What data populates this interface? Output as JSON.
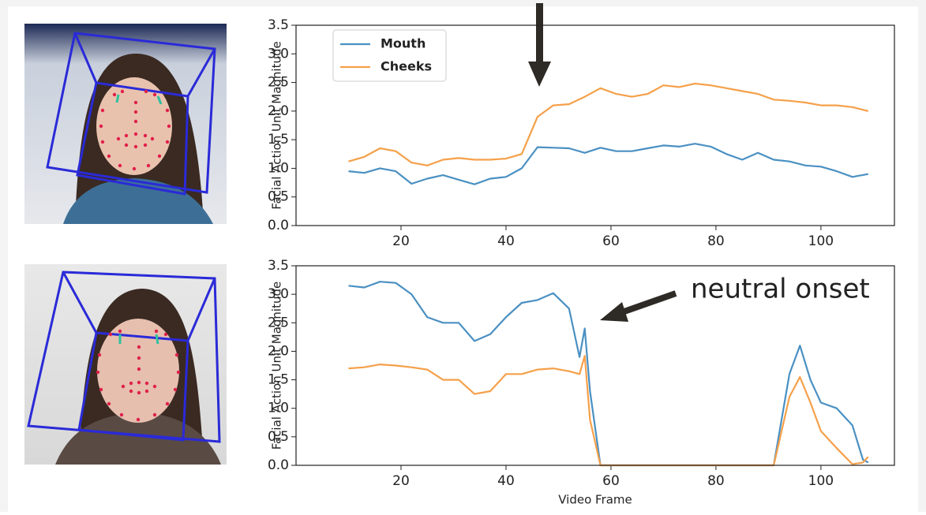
{
  "chart_data": [
    {
      "type": "line",
      "ylabel": "Facial Action Unit Magnitude",
      "legend": "upper left",
      "x": [
        10,
        13,
        16,
        19,
        22,
        25,
        28,
        31,
        34,
        37,
        40,
        43,
        46,
        49,
        52,
        55,
        58,
        61,
        64,
        67,
        70,
        73,
        76,
        79,
        82,
        85,
        88,
        91,
        94,
        97,
        100,
        103,
        106,
        109
      ],
      "series": [
        {
          "name": "Mouth",
          "color": "#4a90c2",
          "values": [
            0.95,
            0.92,
            1.0,
            0.95,
            0.73,
            0.82,
            0.88,
            0.8,
            0.72,
            0.82,
            0.85,
            1.0,
            1.37,
            1.36,
            1.35,
            1.27,
            1.36,
            1.3,
            1.3,
            1.35,
            1.4,
            1.38,
            1.43,
            1.38,
            1.25,
            1.15,
            1.27,
            1.15,
            1.12,
            1.05,
            1.03,
            0.95,
            0.85,
            0.9
          ]
        },
        {
          "name": "Cheeks",
          "color": "#f5a04a",
          "values": [
            1.12,
            1.2,
            1.35,
            1.3,
            1.1,
            1.05,
            1.15,
            1.18,
            1.15,
            1.15,
            1.17,
            1.25,
            1.9,
            2.1,
            2.12,
            2.25,
            2.4,
            2.3,
            2.25,
            2.3,
            2.45,
            2.42,
            2.48,
            2.45,
            2.4,
            2.35,
            2.3,
            2.2,
            2.18,
            2.15,
            2.1,
            2.1,
            2.07,
            2.0
          ]
        }
      ],
      "xlim": [
        0,
        114
      ],
      "xticks": [
        20,
        40,
        60,
        80,
        100
      ],
      "ylim": [
        0,
        3.5
      ],
      "yticks": [
        {
          "value": 0,
          "label": "0.0"
        },
        {
          "value": 0.5,
          "label": "0.5"
        },
        {
          "value": 1,
          "label": "1.0"
        },
        {
          "value": 1.5,
          "label": "1.5"
        },
        {
          "value": 2,
          "label": "2.0"
        },
        {
          "value": 2.5,
          "label": "2.5"
        },
        {
          "value": 3,
          "label": "3.0"
        },
        {
          "value": 3.5,
          "label": "3.5"
        }
      ]
    },
    {
      "type": "line",
      "ylabel": "Facial Action Unit Magnitude",
      "xlabel": "Video Frame",
      "annotation": "neutral onset",
      "x": [
        10,
        13,
        16,
        19,
        22,
        25,
        28,
        31,
        34,
        37,
        40,
        43,
        46,
        49,
        52,
        54,
        55,
        56,
        58,
        64,
        70,
        76,
        82,
        88,
        91,
        94,
        96,
        98,
        100,
        103,
        106,
        108,
        109
      ],
      "series": [
        {
          "name": "Mouth",
          "color": "#4a90c2",
          "values": [
            3.15,
            3.12,
            3.22,
            3.2,
            3.0,
            2.6,
            2.5,
            2.5,
            2.18,
            2.3,
            2.6,
            2.85,
            2.9,
            3.02,
            2.75,
            1.9,
            2.4,
            1.3,
            0,
            0,
            0,
            0,
            0,
            0,
            0,
            1.6,
            2.1,
            1.5,
            1.1,
            1.0,
            0.7,
            0.1,
            0.05
          ]
        },
        {
          "name": "Cheeks",
          "color": "#f5a04a",
          "values": [
            1.7,
            1.72,
            1.77,
            1.75,
            1.72,
            1.68,
            1.5,
            1.5,
            1.25,
            1.3,
            1.6,
            1.6,
            1.68,
            1.7,
            1.65,
            1.6,
            1.92,
            0.8,
            0,
            0,
            0,
            0,
            0,
            0,
            0,
            1.2,
            1.55,
            1.1,
            0.6,
            0.3,
            0.02,
            0.05,
            0.15
          ]
        }
      ],
      "xlim": [
        0,
        114
      ],
      "xticks": [
        20,
        40,
        60,
        80,
        100
      ],
      "ylim": [
        0,
        3.5
      ],
      "yticks": [
        {
          "value": 0,
          "label": "0.0"
        },
        {
          "value": 0.5,
          "label": "0.5"
        },
        {
          "value": 1,
          "label": "1.0"
        },
        {
          "value": 1.5,
          "label": "1.5"
        },
        {
          "value": 2,
          "label": "2.0"
        },
        {
          "value": 2.5,
          "label": "2.5"
        },
        {
          "value": 3,
          "label": "3.0"
        },
        {
          "value": 3.5,
          "label": "3.5"
        }
      ]
    }
  ]
}
